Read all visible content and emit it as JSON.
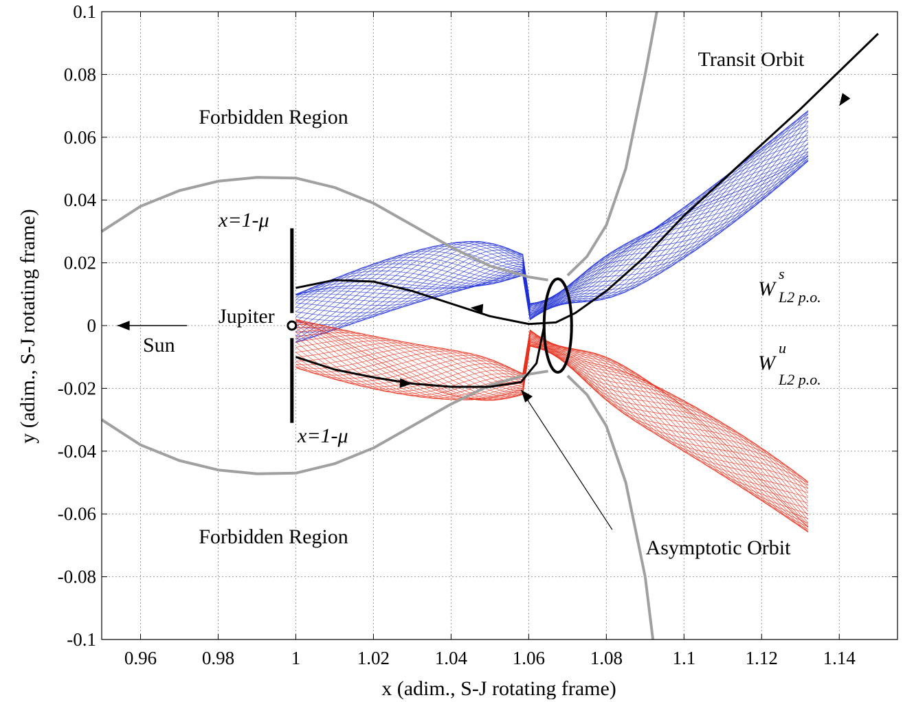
{
  "chart_data": {
    "type": "line",
    "title": "",
    "xlabel": "x (adim., S-J rotating frame)",
    "ylabel": "y (adim., S-J rotating frame)",
    "xlim": [
      0.95,
      1.155
    ],
    "ylim": [
      -0.1,
      0.1
    ],
    "xticks": [
      0.96,
      0.98,
      1,
      1.02,
      1.04,
      1.06,
      1.08,
      1.1,
      1.12,
      1.14
    ],
    "xtick_labels": [
      "0.96",
      "0.98",
      "1",
      "1.02",
      "1.04",
      "1.06",
      "1.08",
      "1.1",
      "1.12",
      "1.14"
    ],
    "yticks": [
      0.1,
      0.08,
      0.06,
      0.04,
      0.02,
      0,
      -0.02,
      -0.04,
      -0.06,
      -0.08,
      -0.1
    ],
    "ytick_labels": [
      "0.1",
      "0.08",
      "0.06",
      "0.04",
      "0.02",
      "0",
      "-0.02",
      "-0.04",
      "-0.06",
      "-0.08",
      "-0.1"
    ],
    "grid": true,
    "colors": {
      "zero_velocity_curve": "#a0a0a0",
      "stable_manifold": "#1f2fd6",
      "unstable_manifold": "#e8301c",
      "orbits": "#000000"
    },
    "series": [
      {
        "key": "zero-velocity-upper",
        "x": [
          0.95,
          0.96,
          0.97,
          0.98,
          0.99,
          1.0,
          1.01,
          1.02,
          1.03,
          1.04,
          1.05,
          1.06,
          1.065
        ],
        "y": [
          0.03,
          0.038,
          0.043,
          0.046,
          0.0472,
          0.047,
          0.044,
          0.039,
          0.032,
          0.025,
          0.019,
          0.0155,
          0.0145
        ]
      },
      {
        "key": "zero-velocity-lower",
        "x": [
          0.95,
          0.96,
          0.97,
          0.98,
          0.99,
          1.0,
          1.01,
          1.02,
          1.03,
          1.04,
          1.05,
          1.06,
          1.065
        ],
        "y": [
          -0.03,
          -0.038,
          -0.043,
          -0.046,
          -0.0472,
          -0.047,
          -0.044,
          -0.039,
          -0.032,
          -0.025,
          -0.019,
          -0.0155,
          -0.0145
        ]
      },
      {
        "key": "zero-velocity-right-upper",
        "x": [
          1.07,
          1.075,
          1.08,
          1.085,
          1.09,
          1.093
        ],
        "y": [
          0.016,
          0.022,
          0.032,
          0.05,
          0.08,
          0.1
        ]
      },
      {
        "key": "zero-velocity-right-lower",
        "x": [
          1.07,
          1.075,
          1.08,
          1.085,
          1.09,
          1.092
        ],
        "y": [
          -0.016,
          -0.022,
          -0.032,
          -0.05,
          -0.08,
          -0.1
        ]
      },
      {
        "key": "transit-orbit",
        "x": [
          1.0,
          1.01,
          1.02,
          1.03,
          1.04,
          1.05,
          1.06,
          1.067,
          1.072,
          1.08,
          1.09,
          1.1,
          1.115,
          1.13,
          1.15
        ],
        "y": [
          0.012,
          0.0145,
          0.014,
          0.011,
          0.007,
          0.003,
          0.0005,
          0.001,
          0.004,
          0.011,
          0.022,
          0.035,
          0.052,
          0.069,
          0.093
        ]
      },
      {
        "key": "asymptotic-orbit",
        "x": [
          1.0,
          1.01,
          1.02,
          1.03,
          1.04,
          1.05,
          1.058,
          1.062,
          1.064
        ],
        "y": [
          -0.01,
          -0.014,
          -0.0165,
          -0.0185,
          -0.0195,
          -0.0195,
          -0.018,
          -0.012,
          0.0
        ]
      }
    ],
    "annotations": {
      "forbidden_top": "Forbidden Region",
      "forbidden_bottom": "Forbidden Region",
      "transit": "Transit Orbit",
      "asymptotic": "Asymptotic Orbit",
      "jupiter": "Jupiter",
      "sun": "Sun",
      "x_one_minus_mu_top": "x=1-μ",
      "x_one_minus_mu_bottom": "x=1-μ",
      "ws_main": "W",
      "ws_sup": "s",
      "ws_sub": "L2 p.o.",
      "wu_main": "W",
      "wu_sup": "u",
      "wu_sub": "L2 p.o."
    }
  }
}
